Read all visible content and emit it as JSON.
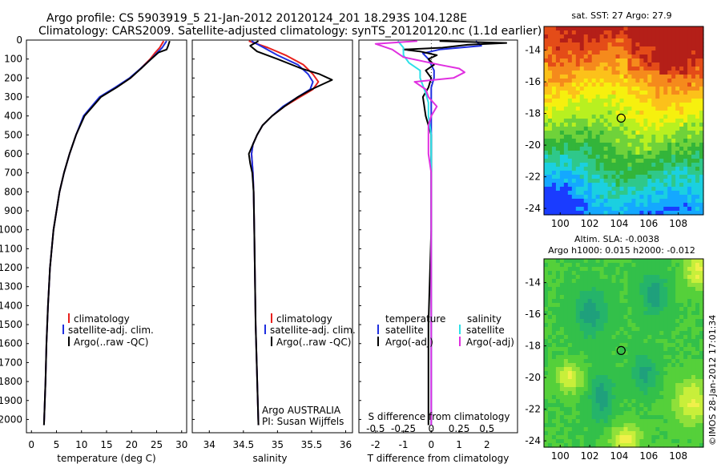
{
  "header": {
    "title_line1": "Argo profile: CS 5903919_5 21-Jan-2012 20120124_201 18.293S 104.128E",
    "title_line2": "Climatology: CARS2009. Satellite-adjusted climatology: synTS_20120120.nc (1.1d earlier)"
  },
  "colors": {
    "climatology": "#e8211d",
    "satellite": "#1f2fe0",
    "argo": "#000000",
    "salinity_sat": "#2ee0e8",
    "salinity_argo": "#e030e0"
  },
  "depth_axis": {
    "ticks": [
      "0",
      "100",
      "200",
      "300",
      "400",
      "500",
      "600",
      "700",
      "800",
      "900",
      "1000",
      "1100",
      "1200",
      "1300",
      "1400",
      "1500",
      "1600",
      "1700",
      "1800",
      "1900",
      "2000"
    ],
    "range": [
      0,
      2070
    ]
  },
  "chart_data": [
    {
      "type": "line",
      "name": "temperature",
      "xlabel": "temperature (deg C)",
      "xlim": [
        -1,
        31
      ],
      "xticks": [
        "0",
        "5",
        "10",
        "15",
        "20",
        "25",
        "30"
      ],
      "legend": [
        "climatology",
        "satellite-adj. clim.",
        "Argo(..raw -QC)"
      ],
      "legend_placement": "lower-middle",
      "series": [
        {
          "name": "climatology",
          "depth": [
            5,
            40,
            70,
            100,
            150,
            200,
            250,
            300,
            400,
            500,
            600,
            700,
            800,
            1000,
            1200,
            1400,
            1600,
            1800,
            2030
          ],
          "values": [
            26.4,
            25.6,
            24.6,
            23.7,
            21.8,
            19.8,
            16.9,
            13.8,
            10.5,
            8.9,
            7.6,
            6.5,
            5.6,
            4.4,
            3.7,
            3.3,
            3.0,
            2.8,
            2.5
          ]
        },
        {
          "name": "satellite-adj. clim.",
          "depth": [
            5,
            40,
            70,
            100,
            150,
            200,
            250,
            300,
            400,
            500,
            600,
            700,
            800,
            1000,
            1200,
            1400,
            1600,
            1800,
            2030
          ],
          "values": [
            27.0,
            26.1,
            25.0,
            23.9,
            21.8,
            19.6,
            16.7,
            13.6,
            10.4,
            8.9,
            7.6,
            6.5,
            5.6,
            4.4,
            3.7,
            3.3,
            3.0,
            2.8,
            2.5
          ]
        },
        {
          "name": "Argo(..raw -QC)",
          "depth": [
            5,
            30,
            50,
            65,
            100,
            150,
            200,
            250,
            300,
            400,
            500,
            600,
            700,
            800,
            1000,
            1200,
            1400,
            1600,
            1800,
            2030
          ],
          "values": [
            27.6,
            27.3,
            27.0,
            25.4,
            23.9,
            21.9,
            19.8,
            17.0,
            13.9,
            10.6,
            8.9,
            7.6,
            6.5,
            5.6,
            4.4,
            3.7,
            3.3,
            3.0,
            2.8,
            2.5
          ]
        }
      ]
    },
    {
      "type": "line",
      "name": "salinity",
      "xlabel": "salinity",
      "xlim": [
        33.75,
        36.1
      ],
      "xticks": [
        "34",
        "34.5",
        "35",
        "35.5",
        "36"
      ],
      "legend": [
        "climatology",
        "satellite-adj. clim.",
        "Argo(..raw -QC)"
      ],
      "legend_placement": "lower-right",
      "annotation": [
        "Argo AUSTRALIA",
        "PI: Susan Wijffels"
      ],
      "series": [
        {
          "name": "climatology",
          "depth": [
            5,
            40,
            80,
            130,
            180,
            220,
            260,
            300,
            350,
            400,
            450,
            500,
            550,
            600,
            700,
            800,
            1000,
            1500,
            2030
          ],
          "values": [
            34.58,
            34.86,
            35.12,
            35.38,
            35.52,
            35.6,
            35.52,
            35.33,
            35.1,
            34.92,
            34.78,
            34.7,
            34.64,
            34.62,
            34.64,
            34.65,
            34.66,
            34.68,
            34.72
          ]
        },
        {
          "name": "satellite-adj. clim.",
          "depth": [
            5,
            40,
            80,
            130,
            180,
            220,
            260,
            300,
            350,
            400,
            450,
            500,
            550,
            600,
            700,
            800,
            1000,
            1500,
            2030
          ],
          "values": [
            34.62,
            34.8,
            35.0,
            35.3,
            35.45,
            35.52,
            35.48,
            35.3,
            35.08,
            34.92,
            34.78,
            34.7,
            34.64,
            34.62,
            34.64,
            34.65,
            34.66,
            34.68,
            34.72
          ]
        },
        {
          "name": "Argo(..raw -QC)",
          "depth": [
            5,
            30,
            60,
            100,
            150,
            180,
            210,
            230,
            260,
            300,
            350,
            400,
            450,
            500,
            550,
            600,
            650,
            700,
            800,
            1000,
            1500,
            2030
          ],
          "values": [
            34.72,
            34.6,
            34.7,
            35.0,
            35.35,
            35.62,
            35.8,
            35.68,
            35.5,
            35.3,
            35.1,
            34.92,
            34.78,
            34.7,
            34.64,
            34.58,
            34.6,
            34.63,
            34.65,
            34.66,
            34.68,
            34.72
          ]
        }
      ]
    },
    {
      "type": "line",
      "name": "differences",
      "xlabel": "T difference from climatology",
      "xlabel2": "S difference from climatology",
      "xlim": [
        -2.6,
        3.1
      ],
      "xticks": [
        "-2",
        "-1",
        "0",
        "1",
        "2"
      ],
      "xticks2": [
        "-0.5",
        "-0.25",
        "0",
        "0.25",
        "0.5"
      ],
      "legend_temperature_title": "temperature",
      "legend_salinity_title": "salinity",
      "legend": [
        "satellite",
        "Argo(-adj)",
        "satellite",
        "Argo(-adj)"
      ],
      "series": [
        {
          "name": "satellite",
          "depth": [
            5,
            30,
            50,
            70,
            100,
            130,
            160,
            200,
            250,
            300,
            400,
            500,
            600,
            800,
            1000,
            1500,
            2030
          ],
          "values": [
            1.6,
            1.8,
            0.3,
            -0.3,
            -0.1,
            0.0,
            0.1,
            0.1,
            0.0,
            0.0,
            0.0,
            0.0,
            0.0,
            0.0,
            0.0,
            0.0,
            0.0
          ]
        },
        {
          "name": "Argo(-adj)",
          "depth": [
            5,
            15,
            25,
            40,
            50,
            60,
            80,
            100,
            130,
            160,
            200,
            250,
            300,
            400,
            500,
            600,
            700,
            800,
            1000,
            1500,
            2030
          ],
          "values": [
            0.3,
            2.7,
            1.3,
            0.4,
            -1.0,
            -0.4,
            0.2,
            -0.1,
            0.1,
            -0.2,
            0.0,
            -0.1,
            -0.3,
            -0.2,
            0.0,
            0.0,
            0.0,
            0.0,
            0.0,
            -0.1,
            -0.1
          ]
        },
        {
          "name": "satellite",
          "depth": [
            5,
            40,
            80,
            120,
            160,
            200,
            240,
            280,
            330,
            400,
            500,
            600,
            700,
            800,
            1000,
            1500,
            2030
          ],
          "values": [
            -1.2,
            -1.0,
            -1.0,
            -0.8,
            -0.4,
            -0.4,
            -0.3,
            -0.2,
            -0.1,
            -0.1,
            0.0,
            0.0,
            0.0,
            0.0,
            0.0,
            0.0,
            0.0
          ]
        },
        {
          "name": "Argo(-adj)",
          "depth": [
            5,
            20,
            50,
            90,
            130,
            150,
            170,
            200,
            220,
            260,
            300,
            350,
            400,
            450,
            500,
            550,
            600,
            700,
            800,
            1000,
            1500,
            2030
          ],
          "values": [
            -0.5,
            -2.0,
            -1.4,
            -1.0,
            0.3,
            1.0,
            1.2,
            0.8,
            -0.6,
            -0.2,
            -0.1,
            0.2,
            0.0,
            -0.1,
            -0.1,
            -0.1,
            -0.1,
            0.0,
            0.0,
            0.0,
            0.0,
            0.0
          ]
        }
      ]
    },
    {
      "type": "heatmap",
      "name": "sst-map",
      "title": "sat. SST: 27 Argo: 27.9",
      "xticks": [
        "100",
        "102",
        "104",
        "106",
        "108"
      ],
      "yticks": [
        "-14",
        "-16",
        "-18",
        "-20",
        "-22",
        "-24"
      ],
      "xlim": [
        98.9,
        109.7
      ],
      "ylim": [
        -24.4,
        -12.5
      ],
      "argo_position": [
        104.128,
        -18.293
      ],
      "colormap": [
        "#1a3cff",
        "#14a8ff",
        "#1bd0e0",
        "#2fc88a",
        "#33b53a",
        "#6fd23a",
        "#b8f020",
        "#f6f00e",
        "#fcc11a",
        "#f58a1c",
        "#e44c18",
        "#b41f18"
      ]
    },
    {
      "type": "heatmap",
      "name": "sla-map",
      "title": "Altim. SLA: -0.0038",
      "subtitle": "Argo h1000: 0.015 h2000: -0.012",
      "xticks": [
        "100",
        "102",
        "104",
        "106",
        "108"
      ],
      "yticks": [
        "-14",
        "-16",
        "-18",
        "-20",
        "-22",
        "-24"
      ],
      "xlim": [
        98.9,
        109.7
      ],
      "ylim": [
        -24.4,
        -12.5
      ],
      "argo_position": [
        104.128,
        -18.293
      ]
    }
  ],
  "footer": {
    "credit": "©IMOS 28-Jan-2012 17:01:34"
  }
}
